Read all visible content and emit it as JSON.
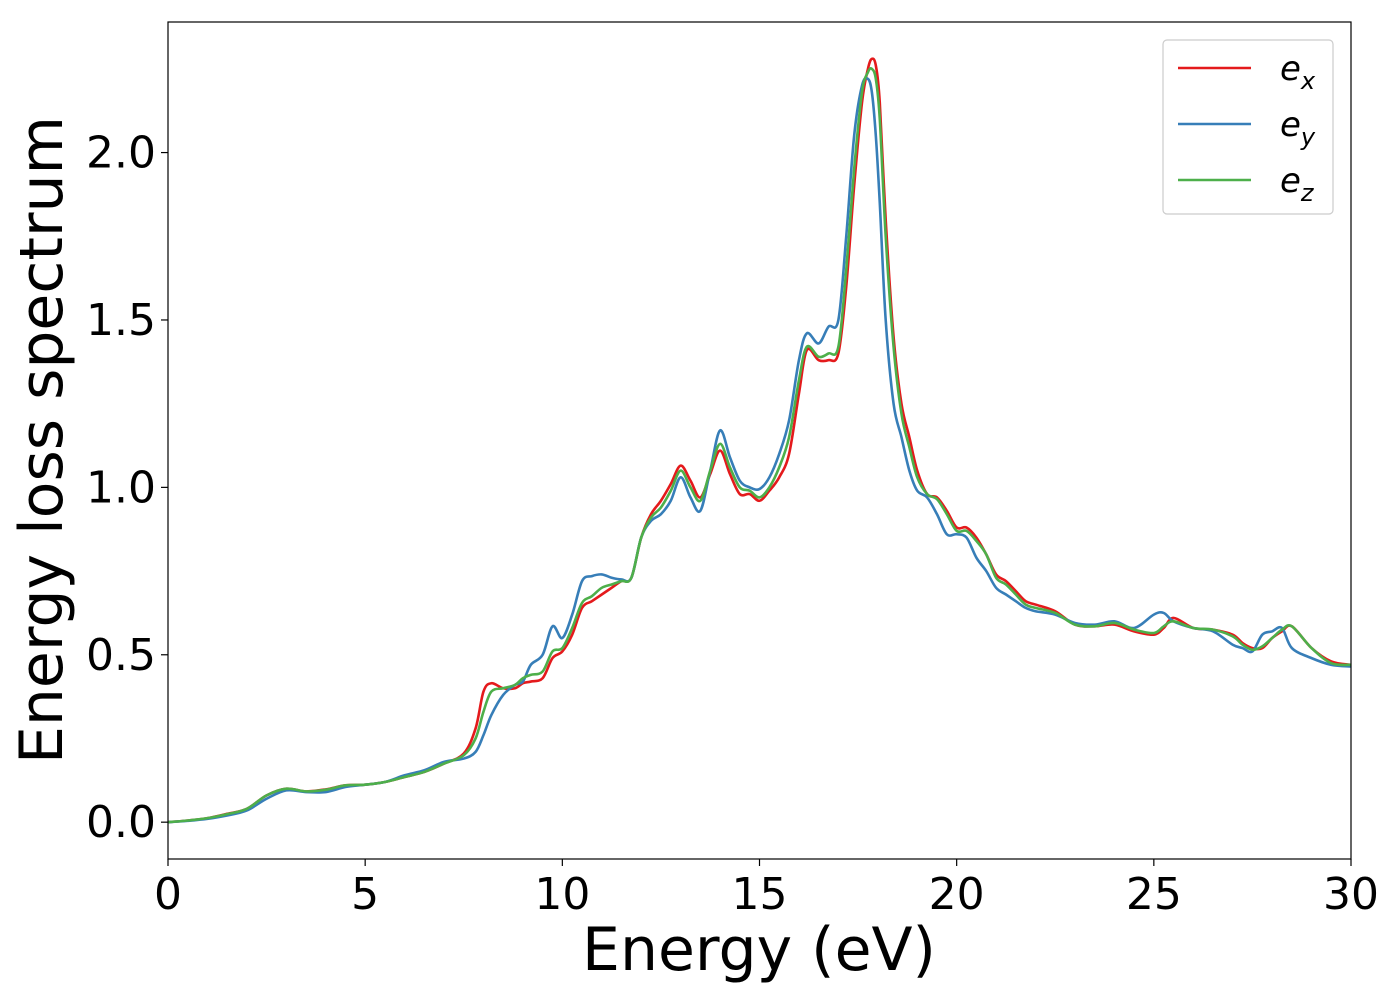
{
  "chart_data": {
    "type": "line",
    "title": "",
    "xlabel": "Energy (eV)",
    "ylabel": "Energy loss spectrum",
    "xlim": [
      0,
      30
    ],
    "ylim": [
      -0.11,
      2.39
    ],
    "xticks": [
      0,
      5,
      10,
      15,
      20,
      25,
      30
    ],
    "yticks": [
      0.0,
      0.5,
      1.0,
      1.5,
      2.0
    ],
    "xtick_labels": [
      "0",
      "5",
      "10",
      "15",
      "20",
      "25",
      "30"
    ],
    "ytick_labels": [
      "0.0",
      "0.5",
      "1.0",
      "1.5",
      "2.0"
    ],
    "grid": false,
    "legend_position": "top-right",
    "x": [
      0,
      0.5,
      1,
      1.5,
      2,
      2.5,
      3,
      3.5,
      4,
      4.5,
      5,
      5.5,
      6,
      6.5,
      7,
      7.5,
      7.8,
      8,
      8.2,
      8.5,
      8.8,
      9,
      9.2,
      9.5,
      9.75,
      10,
      10.25,
      10.5,
      10.75,
      11,
      11.25,
      11.5,
      11.75,
      12,
      12.25,
      12.5,
      12.75,
      13,
      13.25,
      13.5,
      13.75,
      14,
      14.25,
      14.5,
      14.75,
      15,
      15.25,
      15.5,
      15.75,
      16,
      16.2,
      16.5,
      16.75,
      17,
      17.2,
      17.4,
      17.6,
      17.75,
      17.85,
      17.95,
      18.05,
      18.2,
      18.4,
      18.6,
      18.8,
      19,
      19.25,
      19.5,
      19.75,
      20,
      20.25,
      20.5,
      20.75,
      21,
      21.25,
      21.5,
      21.75,
      22,
      22.5,
      23,
      23.5,
      24,
      24.5,
      25,
      25.25,
      25.5,
      26,
      26.5,
      27,
      27.25,
      27.5,
      27.75,
      28,
      28.25,
      28.5,
      29,
      29.5,
      30
    ],
    "series": [
      {
        "name": "e_x",
        "label_base": "e",
        "label_sub": "x",
        "color": "#e41a1c",
        "values": [
          0.0,
          0.005,
          0.012,
          0.025,
          0.04,
          0.08,
          0.1,
          0.092,
          0.098,
          0.11,
          0.112,
          0.12,
          0.135,
          0.15,
          0.175,
          0.205,
          0.28,
          0.39,
          0.415,
          0.4,
          0.4,
          0.415,
          0.42,
          0.43,
          0.49,
          0.51,
          0.56,
          0.64,
          0.66,
          0.68,
          0.7,
          0.72,
          0.73,
          0.85,
          0.92,
          0.96,
          1.01,
          1.065,
          1.02,
          0.97,
          1.04,
          1.11,
          1.04,
          0.98,
          0.98,
          0.96,
          0.99,
          1.03,
          1.1,
          1.28,
          1.41,
          1.38,
          1.38,
          1.4,
          1.6,
          1.9,
          2.15,
          2.25,
          2.28,
          2.26,
          2.15,
          1.8,
          1.45,
          1.25,
          1.15,
          1.05,
          0.98,
          0.97,
          0.93,
          0.88,
          0.88,
          0.85,
          0.8,
          0.74,
          0.72,
          0.69,
          0.66,
          0.65,
          0.63,
          0.59,
          0.585,
          0.59,
          0.57,
          0.56,
          0.58,
          0.61,
          0.58,
          0.575,
          0.56,
          0.535,
          0.52,
          0.52,
          0.55,
          0.57,
          0.585,
          0.52,
          0.48,
          0.47
        ]
      },
      {
        "name": "e_y",
        "label_base": "e",
        "label_sub": "y",
        "color": "#377eb8",
        "values": [
          0.0,
          0.004,
          0.01,
          0.02,
          0.035,
          0.07,
          0.095,
          0.09,
          0.09,
          0.105,
          0.112,
          0.12,
          0.14,
          0.155,
          0.18,
          0.19,
          0.21,
          0.26,
          0.32,
          0.38,
          0.41,
          0.42,
          0.47,
          0.5,
          0.585,
          0.55,
          0.62,
          0.72,
          0.735,
          0.74,
          0.73,
          0.725,
          0.73,
          0.85,
          0.9,
          0.92,
          0.96,
          1.03,
          0.97,
          0.93,
          1.05,
          1.17,
          1.09,
          1.02,
          1.0,
          0.995,
          1.03,
          1.1,
          1.2,
          1.38,
          1.46,
          1.43,
          1.48,
          1.5,
          1.75,
          2.05,
          2.2,
          2.22,
          2.18,
          2.05,
          1.85,
          1.5,
          1.25,
          1.15,
          1.05,
          0.99,
          0.97,
          0.92,
          0.86,
          0.86,
          0.85,
          0.79,
          0.75,
          0.7,
          0.68,
          0.66,
          0.64,
          0.63,
          0.62,
          0.595,
          0.59,
          0.6,
          0.58,
          0.62,
          0.625,
          0.6,
          0.58,
          0.57,
          0.53,
          0.52,
          0.51,
          0.56,
          0.57,
          0.58,
          0.52,
          0.49,
          0.47,
          0.465
        ]
      },
      {
        "name": "e_z",
        "label_base": "e",
        "label_sub": "z",
        "color": "#4daf4a",
        "values": [
          0.0,
          0.005,
          0.012,
          0.024,
          0.04,
          0.08,
          0.1,
          0.092,
          0.097,
          0.11,
          0.112,
          0.12,
          0.135,
          0.15,
          0.175,
          0.2,
          0.25,
          0.33,
          0.39,
          0.4,
          0.41,
          0.43,
          0.44,
          0.45,
          0.51,
          0.52,
          0.58,
          0.655,
          0.675,
          0.7,
          0.71,
          0.72,
          0.73,
          0.85,
          0.91,
          0.94,
          0.99,
          1.05,
          1.0,
          0.96,
          1.05,
          1.13,
          1.06,
          1.0,
          0.99,
          0.97,
          1.0,
          1.06,
          1.15,
          1.32,
          1.42,
          1.39,
          1.4,
          1.42,
          1.65,
          1.95,
          2.18,
          2.24,
          2.25,
          2.22,
          2.1,
          1.75,
          1.42,
          1.22,
          1.12,
          1.03,
          0.98,
          0.965,
          0.92,
          0.87,
          0.87,
          0.84,
          0.8,
          0.73,
          0.71,
          0.68,
          0.65,
          0.64,
          0.625,
          0.59,
          0.585,
          0.595,
          0.575,
          0.565,
          0.585,
          0.6,
          0.58,
          0.575,
          0.555,
          0.53,
          0.515,
          0.525,
          0.55,
          0.575,
          0.585,
          0.52,
          0.475,
          0.47
        ]
      }
    ]
  }
}
